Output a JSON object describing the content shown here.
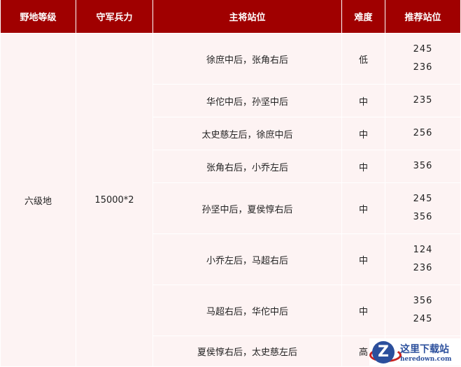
{
  "headers": [
    "野地等级",
    "守军兵力",
    "主将站位",
    "难度",
    "推荐站位"
  ],
  "level": "六级地",
  "troops": "15000*2",
  "rows": [
    {
      "generals": "徐庶中后，张角右后",
      "difficulty": "低",
      "rec": [
        "245",
        "236"
      ]
    },
    {
      "generals": "华佗中后，孙坚中后",
      "difficulty": "中",
      "rec": [
        "235"
      ]
    },
    {
      "generals": "太史慈左后，徐庶中后",
      "difficulty": "中",
      "rec": [
        "256"
      ]
    },
    {
      "generals": "张角右后，小乔左后",
      "difficulty": "中",
      "rec": [
        "356"
      ]
    },
    {
      "generals": "孙坚中后，夏侯惇右后",
      "difficulty": "中",
      "rec": [
        "245",
        "356"
      ]
    },
    {
      "generals": "小乔左后，马超右后",
      "difficulty": "中",
      "rec": [
        "124",
        "236"
      ]
    },
    {
      "generals": "马超右后，华佗中后",
      "difficulty": "中",
      "rec": [
        "356",
        "245"
      ]
    },
    {
      "generals": "夏侯惇右后，太史慈左后",
      "difficulty": "高",
      "rec": []
    }
  ],
  "watermark": {
    "cn": "这里下载站",
    "en": "heredown.com",
    "logo_letter": "Z"
  },
  "colors": {
    "header_bg": "#a00000",
    "cell_bg": "#fdf3f3"
  }
}
